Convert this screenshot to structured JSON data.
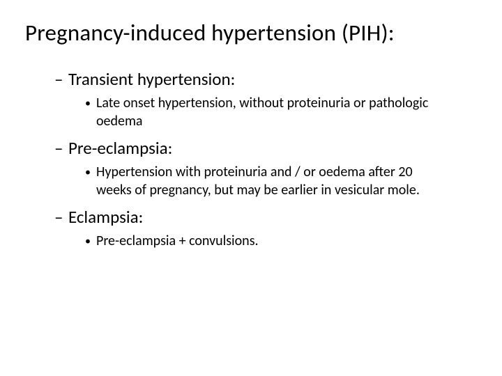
{
  "title": "Pregnancy-induced hypertension (PIH):",
  "bullets": {
    "dash": "–",
    "dot": "•"
  },
  "items": [
    {
      "heading": "Transient hypertension:",
      "body": "Late onset hypertension, without proteinuria or pathologic oedema"
    },
    {
      "heading": "Pre-eclampsia:",
      "body": "Hypertension with proteinuria and / or oedema after 20 weeks of pregnancy, but may be earlier in vesicular mole."
    },
    {
      "heading": "Eclampsia:",
      "body": "Pre-eclampsia + convulsions."
    }
  ],
  "colors": {
    "text": "#000000",
    "background": "#ffffff"
  },
  "fontsizes": {
    "title": 33,
    "level1": 25,
    "level2": 20
  }
}
